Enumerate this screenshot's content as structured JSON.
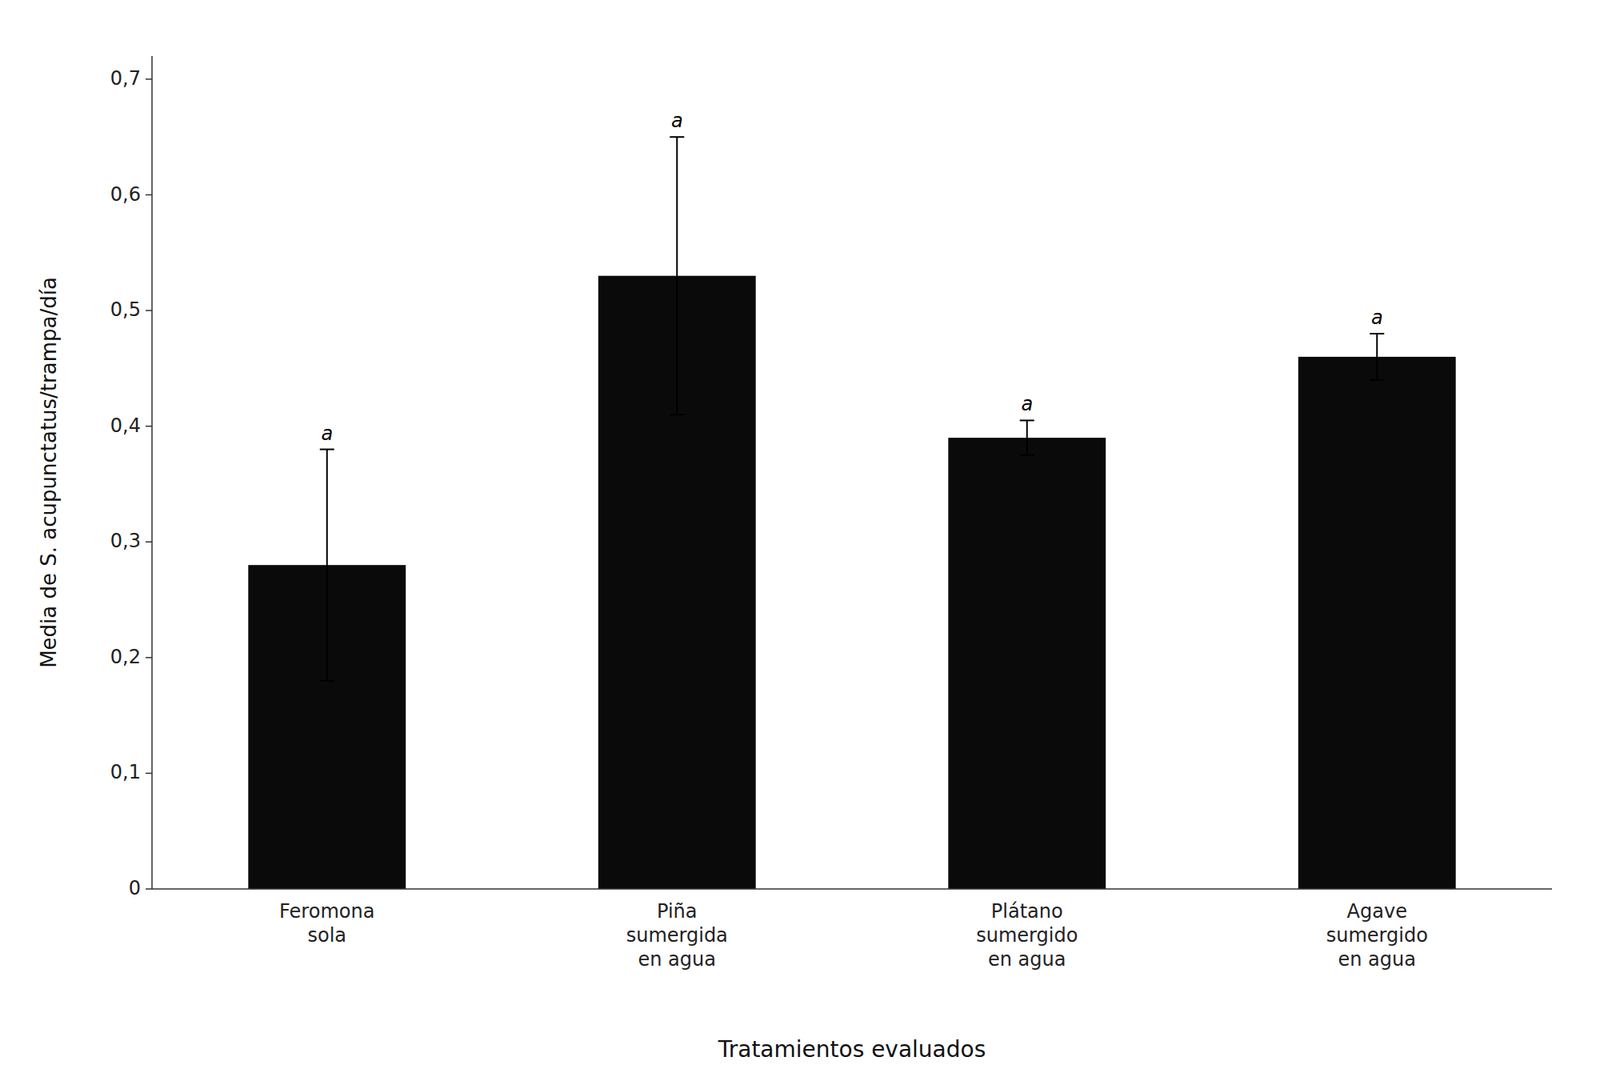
{
  "chart_data": {
    "type": "bar",
    "categories": [
      "Feromona\nsola",
      "Piña\nsumergida\nen agua",
      "Plátano\nsumergido\nen agua",
      "Agave\nsumergido\nen agua"
    ],
    "values": [
      0.28,
      0.53,
      0.39,
      0.46
    ],
    "errors": [
      0.1,
      0.12,
      0.015,
      0.02
    ],
    "significance_labels": [
      "a",
      "a",
      "a",
      "a"
    ],
    "color": "#0a0a0a",
    "xlabel": "Tratamientos evaluados",
    "ylabel": "Media de S. acupunctatus/trampa/día",
    "ylim": [
      0,
      0.72
    ],
    "yticks": [
      0,
      {
        "value": 0.1,
        "label": "0,1"
      },
      {
        "value": 0.2,
        "label": "0,2"
      },
      {
        "value": 0.3,
        "label": "0,3"
      },
      {
        "value": 0.4,
        "label": "0,4"
      },
      {
        "value": 0.5,
        "label": "0,5"
      },
      {
        "value": 0.6,
        "label": "0,6"
      },
      {
        "value": 0.7,
        "label": "0,7"
      }
    ],
    "grid": false
  }
}
